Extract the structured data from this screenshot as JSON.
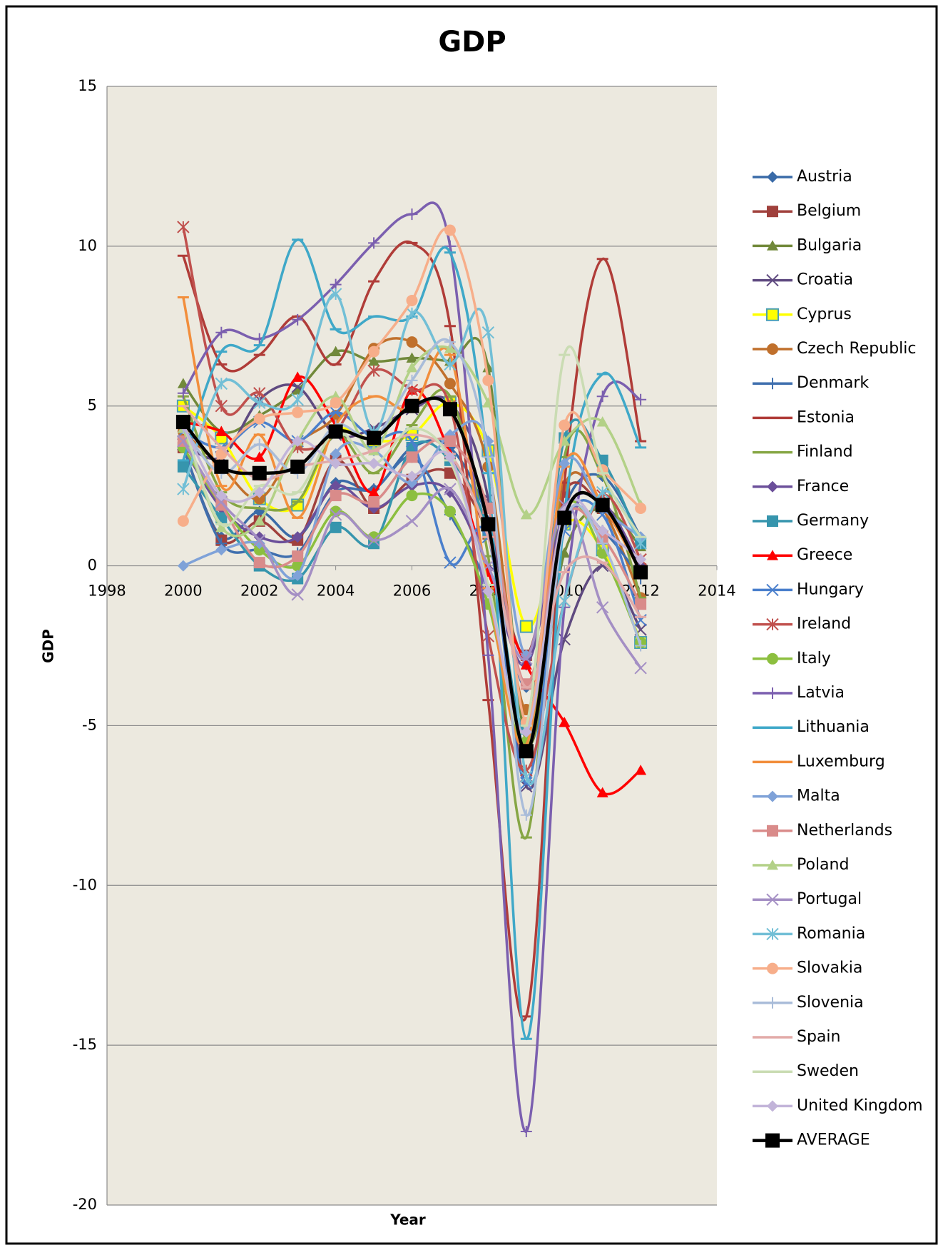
{
  "chart_data": {
    "type": "line",
    "title": "GDP",
    "x_label": "Year",
    "y_label": "GDP",
    "xlim": [
      1998,
      2014
    ],
    "xticks": [
      1998,
      2000,
      2002,
      2004,
      2006,
      2008,
      2010,
      2012,
      2014
    ],
    "ylim": [
      -20,
      15
    ],
    "yticks": [
      -20,
      -15,
      -10,
      -5,
      0,
      5,
      10,
      15
    ],
    "grid": true,
    "smooth": true,
    "legend": "right",
    "x": [
      2000,
      2001,
      2002,
      2003,
      2004,
      2005,
      2006,
      2007,
      2008,
      2009,
      2010,
      2011,
      2012
    ],
    "series": [
      {
        "name": "Austria",
        "color": "#3a6ba8",
        "marker": "diamond",
        "values": [
          3.7,
          0.9,
          1.7,
          0.9,
          2.6,
          2.4,
          3.7,
          3.7,
          1.4,
          -3.8,
          1.8,
          2.8,
          0.9
        ]
      },
      {
        "name": "Belgium",
        "color": "#a0403c",
        "marker": "square",
        "values": [
          3.7,
          0.8,
          1.4,
          0.8,
          3.3,
          1.8,
          2.7,
          2.9,
          1.0,
          -2.8,
          2.3,
          1.8,
          -0.1
        ]
      },
      {
        "name": "Bulgaria",
        "color": "#71893a",
        "marker": "triangle",
        "values": [
          5.7,
          4.2,
          4.7,
          5.5,
          6.7,
          6.4,
          6.5,
          6.4,
          6.2,
          -5.5,
          0.4,
          1.8,
          0.6
        ]
      },
      {
        "name": "Croatia",
        "color": "#5f4a80",
        "marker": "x",
        "values": [
          3.8,
          3.4,
          5.2,
          5.6,
          4.1,
          4.3,
          4.9,
          5.1,
          2.1,
          -6.9,
          -2.3,
          0.0,
          -2.0
        ]
      },
      {
        "name": "Cyprus",
        "color": "#ffff00",
        "marker": "square",
        "values": [
          5.0,
          4.0,
          2.1,
          1.9,
          4.2,
          3.9,
          4.1,
          5.1,
          3.6,
          -1.9,
          1.3,
          0.5,
          -2.4
        ]
      },
      {
        "name": "Czech Republic",
        "color": "#c0702c",
        "marker": "circle",
        "values": [
          4.2,
          3.1,
          2.1,
          3.8,
          4.7,
          6.8,
          7.0,
          5.7,
          3.1,
          -4.5,
          2.5,
          1.8,
          -1.0
        ]
      },
      {
        "name": "Denmark",
        "color": "#3f6fae",
        "marker": "plus",
        "values": [
          3.7,
          0.7,
          0.5,
          0.4,
          2.3,
          2.4,
          3.4,
          1.6,
          -0.8,
          -5.7,
          1.4,
          1.1,
          -0.4
        ]
      },
      {
        "name": "Estonia",
        "color": "#b03c38",
        "marker": "dash",
        "values": [
          9.7,
          6.3,
          6.6,
          7.8,
          6.3,
          8.9,
          10.1,
          7.5,
          -4.2,
          -14.1,
          2.6,
          9.6,
          3.9
        ]
      },
      {
        "name": "Finland",
        "color": "#86a644",
        "marker": "dash",
        "values": [
          5.3,
          2.3,
          1.8,
          2.0,
          4.1,
          2.9,
          4.4,
          5.3,
          0.3,
          -8.5,
          3.4,
          2.8,
          -1.0
        ]
      },
      {
        "name": "France",
        "color": "#6b4f9a",
        "marker": "diamond",
        "values": [
          3.7,
          1.8,
          0.9,
          0.9,
          2.5,
          1.8,
          2.5,
          2.3,
          -0.1,
          -3.1,
          1.7,
          2.0,
          0.0
        ]
      },
      {
        "name": "Germany",
        "color": "#3695ad",
        "marker": "square",
        "values": [
          3.1,
          1.5,
          0.0,
          -0.4,
          1.2,
          0.7,
          3.7,
          3.3,
          1.1,
          -5.1,
          4.0,
          3.3,
          0.7
        ]
      },
      {
        "name": "Greece",
        "color": "#ff0000",
        "marker": "triangle",
        "values": [
          4.5,
          4.2,
          3.4,
          5.9,
          4.4,
          2.3,
          5.5,
          3.5,
          -0.2,
          -3.1,
          -4.9,
          -7.1,
          -6.4
        ]
      },
      {
        "name": "Hungary",
        "color": "#4a7fcc",
        "marker": "x",
        "values": [
          4.2,
          3.7,
          4.5,
          3.9,
          4.8,
          4.0,
          3.9,
          0.1,
          0.9,
          -6.8,
          1.1,
          1.6,
          -1.7
        ]
      },
      {
        "name": "Ireland",
        "color": "#c0504d",
        "marker": "star",
        "values": [
          10.6,
          5.0,
          5.4,
          3.7,
          4.2,
          6.1,
          5.5,
          5.0,
          -2.2,
          -6.4,
          -1.1,
          2.2,
          0.2
        ]
      },
      {
        "name": "Italy",
        "color": "#8cbf3f",
        "marker": "circle",
        "values": [
          3.7,
          1.9,
          0.5,
          0.0,
          1.7,
          0.9,
          2.2,
          1.7,
          -1.2,
          -5.5,
          1.7,
          0.4,
          -2.4
        ]
      },
      {
        "name": "Latvia",
        "color": "#7b5faf",
        "marker": "plus",
        "values": [
          5.4,
          7.3,
          7.1,
          7.7,
          8.8,
          10.1,
          11.0,
          10.0,
          -2.8,
          -17.7,
          -1.3,
          5.3,
          5.2
        ]
      },
      {
        "name": "Lithuania",
        "color": "#3fa8c8",
        "marker": "dash",
        "values": [
          3.3,
          6.7,
          6.9,
          10.2,
          7.4,
          7.8,
          7.8,
          9.8,
          2.9,
          -14.8,
          1.6,
          6.0,
          3.7
        ]
      },
      {
        "name": "Luxemburg",
        "color": "#f28e3c",
        "marker": "dash",
        "values": [
          8.4,
          2.5,
          4.1,
          1.5,
          4.4,
          5.3,
          4.9,
          6.6,
          -0.7,
          -5.6,
          3.1,
          1.9,
          -0.2
        ]
      },
      {
        "name": "Malta",
        "color": "#7fa2d8",
        "marker": "diamond",
        "values": [
          0.0,
          0.5,
          0.7,
          -0.3,
          3.5,
          3.6,
          2.6,
          4.1,
          3.9,
          -2.8,
          3.2,
          1.8,
          0.9
        ]
      },
      {
        "name": "Netherlands",
        "color": "#d98b8a",
        "marker": "square",
        "values": [
          3.9,
          1.9,
          0.1,
          0.3,
          2.2,
          2.0,
          3.4,
          3.9,
          1.8,
          -3.7,
          1.5,
          0.9,
          -1.2
        ]
      },
      {
        "name": "Poland",
        "color": "#b3d187",
        "marker": "triangle",
        "values": [
          4.3,
          1.2,
          1.4,
          3.9,
          5.3,
          3.6,
          6.2,
          6.8,
          5.1,
          1.6,
          3.9,
          4.5,
          1.9
        ]
      },
      {
        "name": "Portugal",
        "color": "#a48fc4",
        "marker": "x",
        "values": [
          3.9,
          2.0,
          0.8,
          -0.9,
          1.6,
          0.8,
          1.4,
          2.4,
          0.0,
          -2.9,
          1.9,
          -1.3,
          -3.2
        ]
      },
      {
        "name": "Romania",
        "color": "#72bfd6",
        "marker": "star",
        "values": [
          2.4,
          5.7,
          5.1,
          5.2,
          8.5,
          4.2,
          7.9,
          6.3,
          7.3,
          -6.6,
          -1.1,
          2.3,
          0.7
        ]
      },
      {
        "name": "Slovakia",
        "color": "#f7ae8a",
        "marker": "circle",
        "values": [
          1.4,
          3.5,
          4.6,
          4.8,
          5.1,
          6.7,
          8.3,
          10.5,
          5.8,
          -4.9,
          4.4,
          3.0,
          1.8
        ]
      },
      {
        "name": "Slovenia",
        "color": "#a9bcd9",
        "marker": "plus",
        "values": [
          4.3,
          2.9,
          3.8,
          2.9,
          4.4,
          4.0,
          5.8,
          7.0,
          3.4,
          -7.8,
          1.3,
          0.7,
          -2.5
        ]
      },
      {
        "name": "Spain",
        "color": "#e2aaa8",
        "marker": "dash",
        "values": [
          5.0,
          3.7,
          2.7,
          3.1,
          3.3,
          3.6,
          4.1,
          3.5,
          0.9,
          -3.8,
          -0.2,
          0.1,
          -1.6
        ]
      },
      {
        "name": "Sweden",
        "color": "#cadcb3",
        "marker": "dash",
        "values": [
          4.5,
          1.3,
          2.5,
          2.3,
          4.2,
          3.2,
          4.3,
          3.3,
          -0.6,
          -5.0,
          6.6,
          2.9,
          0.9
        ]
      },
      {
        "name": "United Kingdom",
        "color": "#c2b4d9",
        "marker": "diamond",
        "values": [
          4.4,
          2.2,
          2.3,
          3.9,
          3.2,
          3.2,
          2.8,
          3.4,
          -0.8,
          -5.2,
          1.7,
          1.1,
          0.2
        ]
      },
      {
        "name": "AVERAGE",
        "color": "#000000",
        "marker": "square",
        "values": [
          4.5,
          3.1,
          2.9,
          3.1,
          4.2,
          4.0,
          5.0,
          4.9,
          1.3,
          -5.8,
          1.5,
          1.9,
          -0.2
        ]
      }
    ]
  }
}
